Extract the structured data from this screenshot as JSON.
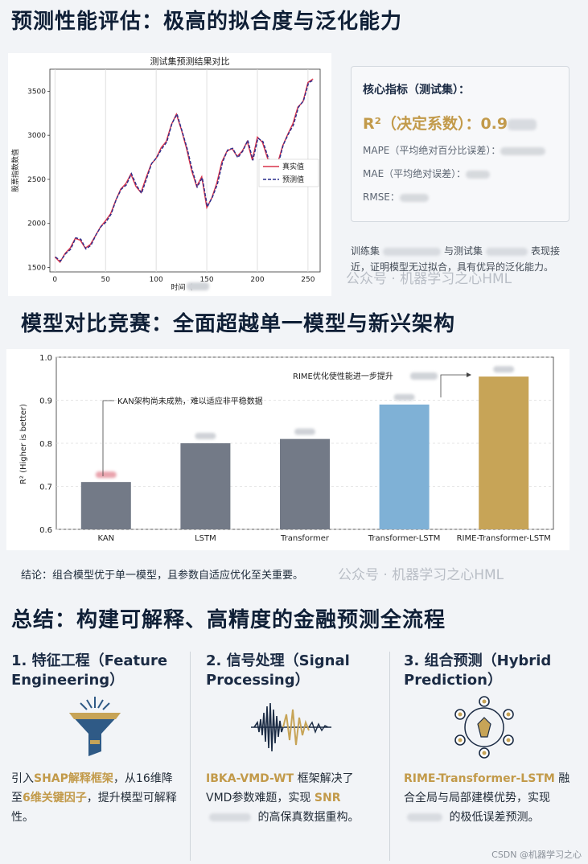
{
  "section1_title": "预测性能评估：极高的拟合度与泛化能力",
  "section2_title": "模型对比竞赛：全面超越单一模型与新兴架构",
  "section3_title": "总结：构建可解释、高精度的金融预测全流程",
  "metrics": {
    "title": "核心指标（测试集）：",
    "r2_label": "R²（决定系数）：0.9",
    "mape_label": "MAPE（平均绝对百分比误差）：",
    "mae_label": "MAE（平均绝对误差）：",
    "rmse_label": "RMSE："
  },
  "train_note": {
    "part1": "训练集",
    "part2": "与测试集",
    "part3": "表现接近，证明模型无过拟合，具有优异的泛化能力。"
  },
  "watermark": "公众号 · 机器学习之心HML",
  "conclusion": "结论：组合模型优于单一模型，且参数自适应优化至关重要。",
  "csdn": "CSDN @机器学习之心",
  "columns": [
    {
      "title": "1. 特征工程（Feature Engineering）",
      "d1": "引入",
      "d_gold1": "SHAP解释框架",
      "d2": "，从16维降至",
      "d_gold2": "6维关键因子",
      "d3": "，提升模型可解释性。"
    },
    {
      "title": "2. 信号处理（Signal Processing）",
      "d_gold1": "IBKA-VMD-WT",
      "d1": " 框架解决了VMD参数难题，实现 ",
      "d_gold2": "SNR",
      "d2": " 的高保真数据重构。"
    },
    {
      "title": "3. 组合预测（Hybrid Prediction）",
      "d_gold1": "RIME-Transformer-LSTM",
      "d1": " 融合全局与局部建模优势，实现 ",
      "d2": " 的极低误差预测。"
    }
  ],
  "icons": [
    "funnel-icon",
    "waveform-icon",
    "network-hub-icon"
  ],
  "colors": {
    "gold": "#c29a4a",
    "navy": "#1b2b44",
    "gray_bar": "#737a87",
    "blue_bar": "#7fb1d6",
    "gold_bar": "#c7a457",
    "red_line": "#d8324a",
    "blue_dash": "#2a2e8c"
  },
  "chart_data": [
    {
      "type": "line",
      "title": "测试集预测结果对比",
      "xlabel": "时间（",
      "ylabel": "股票指数数值",
      "xlim": [
        -5,
        262
      ],
      "ylim": [
        1450,
        3750
      ],
      "xticks": [
        0,
        50,
        100,
        150,
        200,
        250
      ],
      "yticks": [
        1500,
        2000,
        2500,
        3000,
        3500
      ],
      "grid": "x-only",
      "legend": "center-right",
      "series": [
        {
          "name": "真实值",
          "style": "solid",
          "color": "#d8324a"
        },
        {
          "name": "预测值",
          "style": "dashed",
          "color": "#2a2e8c"
        }
      ],
      "x": [
        0,
        5,
        10,
        15,
        20,
        25,
        30,
        35,
        40,
        45,
        50,
        55,
        60,
        65,
        70,
        75,
        80,
        85,
        90,
        95,
        100,
        105,
        110,
        115,
        120,
        125,
        130,
        135,
        140,
        145,
        150,
        155,
        160,
        165,
        170,
        175,
        180,
        185,
        190,
        195,
        200,
        205,
        210,
        215,
        220,
        225,
        230,
        235,
        240,
        245,
        250,
        255
      ],
      "values": [
        1620,
        1560,
        1660,
        1720,
        1830,
        1810,
        1720,
        1760,
        1860,
        1960,
        2030,
        2110,
        2260,
        2390,
        2450,
        2560,
        2420,
        2350,
        2520,
        2670,
        2740,
        2860,
        2930,
        3120,
        3240,
        3060,
        2850,
        2600,
        2420,
        2530,
        2180,
        2290,
        2460,
        2700,
        2820,
        2850,
        2760,
        2820,
        2930,
        2720,
        2980,
        2920,
        2740,
        2600,
        2680,
        2880,
        3010,
        3130,
        3320,
        3380,
        3600,
        3640
      ]
    },
    {
      "type": "bar",
      "ylabel": "R² (Higher is better)",
      "ylim": [
        0.6,
        1.0
      ],
      "yticks": [
        0.6,
        0.7,
        0.8,
        0.9,
        1.0
      ],
      "categories": [
        "KAN",
        "LSTM",
        "Transformer",
        "Transformer-LSTM",
        "RIME-Transformer-LSTM"
      ],
      "values": [
        0.71,
        0.8,
        0.81,
        0.89,
        0.955
      ],
      "bar_colors": [
        "#737a87",
        "#737a87",
        "#737a87",
        "#7fb1d6",
        "#c7a457"
      ],
      "annotations": [
        "KAN架构尚未成熟，难以适应非平稳数据",
        "RIME优化使性能进一步提升"
      ]
    }
  ]
}
